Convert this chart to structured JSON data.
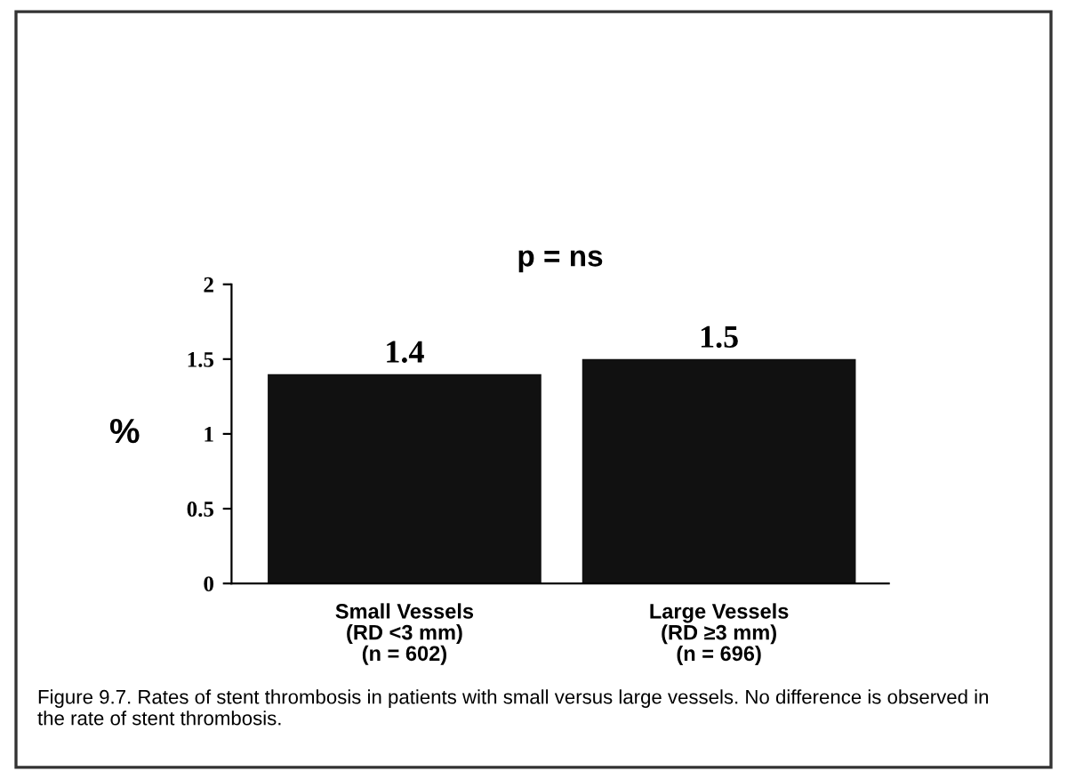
{
  "chart_data": {
    "type": "bar",
    "categories": [
      "Small Vessels\n(RD <3 mm)\n(n = 602)",
      "Large Vessels\n(RD ≥3 mm)\n(n = 696)"
    ],
    "values": [
      1.4,
      1.5
    ],
    "color": "#111111",
    "ylabel": "%",
    "ylim": [
      0,
      2
    ],
    "yticks": [
      0,
      0.5,
      1,
      1.5,
      2
    ],
    "data_labels": true,
    "grid": false,
    "legend": false,
    "annotations": [
      "p = ns",
      "Figure 9.7. Rates of stent thrombosis in patients with small versus large vessels. No difference is observed in the rate of stent thrombosis."
    ]
  }
}
